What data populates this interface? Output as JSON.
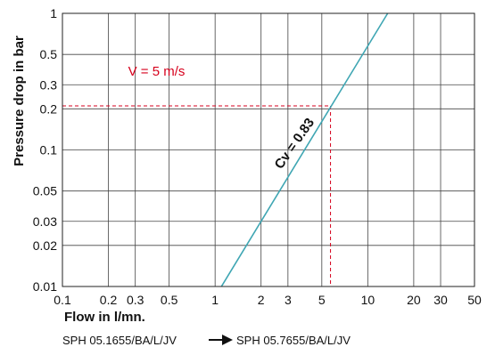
{
  "chart_data": {
    "type": "line",
    "xscale": "log",
    "yscale": "log",
    "xlim": [
      0.1,
      50
    ],
    "ylim": [
      0.01,
      1
    ],
    "grid": true,
    "xlabel": "Flow in l/mn.",
    "ylabel": "Pressure drop in bar",
    "x_ticks": [
      {
        "value": 0.1,
        "label": "0.1"
      },
      {
        "value": 0.2,
        "label": "0.2"
      },
      {
        "value": 0.3,
        "label": "0.3"
      },
      {
        "value": 0.5,
        "label": "0.5"
      },
      {
        "value": 1,
        "label": "1"
      },
      {
        "value": 2,
        "label": "2"
      },
      {
        "value": 3,
        "label": "3"
      },
      {
        "value": 5,
        "label": "5"
      },
      {
        "value": 10,
        "label": "10"
      },
      {
        "value": 20,
        "label": "20"
      },
      {
        "value": 30,
        "label": "30"
      },
      {
        "value": 50,
        "label": "50"
      }
    ],
    "y_ticks": [
      {
        "value": 0.01,
        "label": "0.01"
      },
      {
        "value": 0.02,
        "label": "0.02"
      },
      {
        "value": 0.03,
        "label": "0.03"
      },
      {
        "value": 0.05,
        "label": "0.05"
      },
      {
        "value": 0.1,
        "label": "0.1"
      },
      {
        "value": 0.2,
        "label": "0.2"
      },
      {
        "value": 0.3,
        "label": "0.3"
      },
      {
        "value": 0.5,
        "label": "0.5"
      },
      {
        "value": 1,
        "label": "1"
      }
    ],
    "series": [
      {
        "x": [
          1.1,
          13.5
        ],
        "y": [
          0.01,
          1
        ],
        "color": "#3fa6b3"
      }
    ],
    "reference_point": {
      "x": 5.7,
      "y": 0.21,
      "color": "#d6001c"
    },
    "annotations": {
      "velocity": "V = 5 m/s",
      "cv": "Cv = 0.83"
    }
  },
  "footer": {
    "from": "SPH 05.1655/BA/L/JV",
    "to": "SPH 05.7655/BA/L/JV"
  }
}
